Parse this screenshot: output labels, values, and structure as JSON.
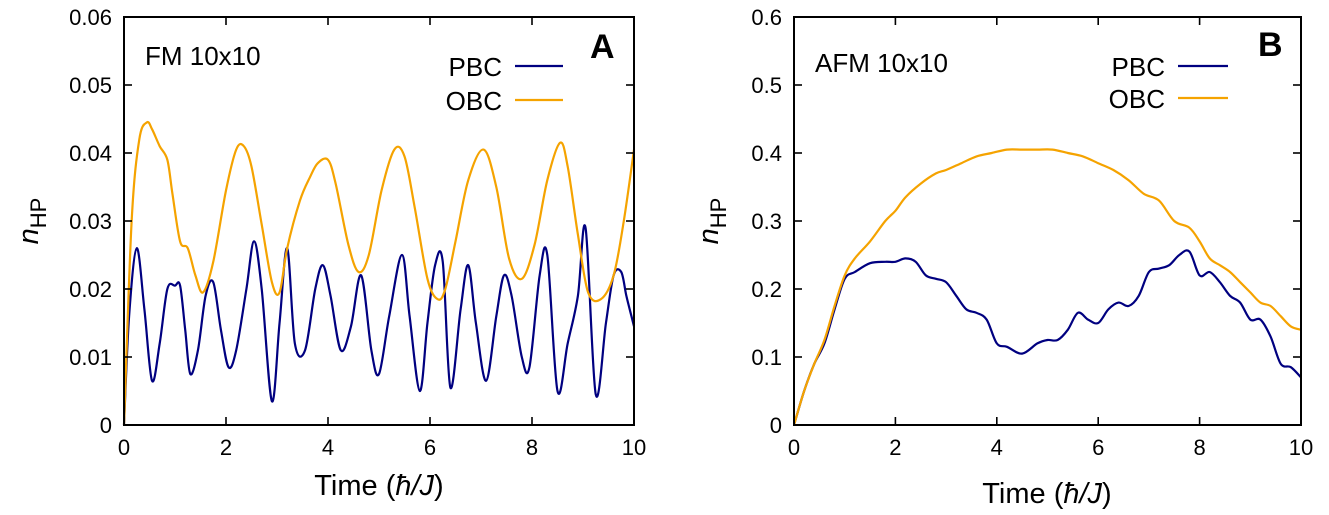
{
  "figure": {
    "panels": [
      {
        "letter": "A",
        "annotation": "FM 10x10",
        "xlabel_main": "Time (",
        "xlabel_unit": "ħ/J",
        "xlabel_close": ")",
        "ylabel_main": "n",
        "ylabel_sub": "HP"
      },
      {
        "letter": "B",
        "annotation": "AFM 10x10",
        "xlabel_main": "Time (",
        "xlabel_unit": "ħ/J",
        "xlabel_close": ")",
        "ylabel_main": "n",
        "ylabel_sub": "HP"
      }
    ]
  },
  "chart_data": [
    {
      "type": "line",
      "title": "FM 10x10",
      "panel": "A",
      "xlabel": "Time (ħ/J)",
      "ylabel": "n_HP",
      "xlim": [
        0,
        10
      ],
      "ylim": [
        0,
        0.06
      ],
      "xticks": [
        0,
        2,
        4,
        6,
        8,
        10
      ],
      "xtick_labels": [
        "0",
        "2",
        "4",
        "6",
        "8",
        "10"
      ],
      "yticks": [
        0,
        0.01,
        0.02,
        0.03,
        0.04,
        0.05,
        0.06
      ],
      "ytick_labels": [
        "0",
        "0.01",
        "0.02",
        "0.03",
        "0.04",
        "0.05",
        "0.06"
      ],
      "legend_position": "top-right",
      "series": [
        {
          "name": "PBC",
          "color": "#000080",
          "x": [
            0,
            0.1,
            0.25,
            0.4,
            0.55,
            0.7,
            0.85,
            1.0,
            1.1,
            1.2,
            1.3,
            1.45,
            1.6,
            1.75,
            1.9,
            2.05,
            2.2,
            2.4,
            2.55,
            2.7,
            2.9,
            3.05,
            3.2,
            3.35,
            3.55,
            3.75,
            3.9,
            4.05,
            4.25,
            4.45,
            4.65,
            4.85,
            5.0,
            5.2,
            5.45,
            5.6,
            5.8,
            5.95,
            6.1,
            6.25,
            6.4,
            6.6,
            6.75,
            6.9,
            7.1,
            7.3,
            7.45,
            7.6,
            7.8,
            7.95,
            8.15,
            8.3,
            8.5,
            8.7,
            8.9,
            9.05,
            9.25,
            9.45,
            9.6,
            9.75,
            9.85,
            9.95,
            10
          ],
          "values": [
            0,
            0.016,
            0.026,
            0.017,
            0.0065,
            0.012,
            0.02,
            0.0205,
            0.0205,
            0.014,
            0.0075,
            0.011,
            0.019,
            0.021,
            0.014,
            0.0085,
            0.011,
            0.02,
            0.027,
            0.02,
            0.0035,
            0.015,
            0.026,
            0.012,
            0.011,
            0.02,
            0.0235,
            0.019,
            0.011,
            0.0145,
            0.022,
            0.011,
            0.0075,
            0.016,
            0.025,
            0.016,
            0.005,
            0.015,
            0.0235,
            0.024,
            0.0055,
            0.017,
            0.0235,
            0.015,
            0.0065,
            0.016,
            0.022,
            0.019,
            0.01,
            0.0085,
            0.022,
            0.025,
            0.005,
            0.012,
            0.019,
            0.029,
            0.0045,
            0.015,
            0.022,
            0.0225,
            0.019,
            0.016,
            0.0145
          ]
        },
        {
          "name": "OBC",
          "color": "#F5A300",
          "x": [
            0,
            0.15,
            0.3,
            0.45,
            0.55,
            0.7,
            0.85,
            0.95,
            1.1,
            1.25,
            1.4,
            1.55,
            1.75,
            2.0,
            2.2,
            2.35,
            2.5,
            2.7,
            2.9,
            3.05,
            3.2,
            3.45,
            3.65,
            3.8,
            4.0,
            4.15,
            4.4,
            4.6,
            4.8,
            5.05,
            5.3,
            5.5,
            5.7,
            5.95,
            6.15,
            6.3,
            6.5,
            6.75,
            7.05,
            7.3,
            7.55,
            7.8,
            8.05,
            8.3,
            8.55,
            8.7,
            8.9,
            9.1,
            9.35,
            9.6,
            9.8,
            10
          ],
          "values": [
            0,
            0.03,
            0.042,
            0.0445,
            0.0435,
            0.041,
            0.039,
            0.034,
            0.027,
            0.026,
            0.022,
            0.0195,
            0.024,
            0.0345,
            0.0405,
            0.041,
            0.038,
            0.0295,
            0.021,
            0.0195,
            0.026,
            0.033,
            0.0365,
            0.0385,
            0.039,
            0.0355,
            0.0265,
            0.0225,
            0.025,
            0.0345,
            0.0405,
            0.0395,
            0.032,
            0.0215,
            0.0185,
            0.02,
            0.027,
            0.036,
            0.0405,
            0.035,
            0.0245,
            0.0215,
            0.0265,
            0.036,
            0.0415,
            0.038,
            0.028,
            0.0195,
            0.0185,
            0.022,
            0.03,
            0.0405
          ]
        }
      ]
    },
    {
      "type": "line",
      "title": "AFM 10x10",
      "panel": "B",
      "xlabel": "Time (ħ/J)",
      "ylabel": "n_HP",
      "xlim": [
        0,
        10
      ],
      "ylim": [
        0,
        0.6
      ],
      "xticks": [
        0,
        2,
        4,
        6,
        8,
        10
      ],
      "xtick_labels": [
        "0",
        "2",
        "4",
        "6",
        "8",
        "10"
      ],
      "yticks": [
        0,
        0.1,
        0.2,
        0.3,
        0.4,
        0.5,
        0.6
      ],
      "ytick_labels": [
        "0",
        "0.1",
        "0.2",
        "0.3",
        "0.4",
        "0.5",
        "0.6"
      ],
      "legend_position": "top-right",
      "series": [
        {
          "name": "PBC",
          "color": "#000080",
          "x": [
            0,
            0.2,
            0.4,
            0.6,
            0.8,
            1.0,
            1.2,
            1.5,
            1.8,
            2.0,
            2.2,
            2.4,
            2.6,
            2.8,
            3.0,
            3.2,
            3.4,
            3.6,
            3.8,
            4.0,
            4.2,
            4.5,
            4.8,
            5.0,
            5.2,
            5.4,
            5.6,
            5.8,
            6.0,
            6.2,
            6.4,
            6.6,
            6.8,
            7.0,
            7.2,
            7.4,
            7.6,
            7.8,
            8.0,
            8.2,
            8.4,
            8.6,
            8.8,
            9.0,
            9.2,
            9.4,
            9.6,
            9.8,
            10
          ],
          "values": [
            0,
            0.05,
            0.09,
            0.12,
            0.17,
            0.215,
            0.225,
            0.238,
            0.24,
            0.24,
            0.245,
            0.24,
            0.22,
            0.215,
            0.21,
            0.19,
            0.17,
            0.165,
            0.155,
            0.12,
            0.115,
            0.105,
            0.12,
            0.125,
            0.125,
            0.14,
            0.165,
            0.155,
            0.15,
            0.17,
            0.18,
            0.175,
            0.19,
            0.225,
            0.23,
            0.235,
            0.25,
            0.255,
            0.22,
            0.225,
            0.21,
            0.19,
            0.18,
            0.155,
            0.155,
            0.13,
            0.09,
            0.085,
            0.07
          ]
        },
        {
          "name": "OBC",
          "color": "#F5A300",
          "x": [
            0,
            0.2,
            0.4,
            0.6,
            0.8,
            1.0,
            1.2,
            1.5,
            1.8,
            2.0,
            2.2,
            2.5,
            2.8,
            3.0,
            3.3,
            3.6,
            3.9,
            4.2,
            4.5,
            4.8,
            5.1,
            5.4,
            5.7,
            6.0,
            6.3,
            6.6,
            6.9,
            7.2,
            7.5,
            7.8,
            8.0,
            8.2,
            8.4,
            8.6,
            8.8,
            9.0,
            9.2,
            9.4,
            9.6,
            9.8,
            10
          ],
          "values": [
            0,
            0.05,
            0.09,
            0.125,
            0.175,
            0.22,
            0.245,
            0.27,
            0.3,
            0.315,
            0.335,
            0.355,
            0.37,
            0.375,
            0.385,
            0.395,
            0.4,
            0.405,
            0.405,
            0.405,
            0.405,
            0.4,
            0.395,
            0.385,
            0.375,
            0.36,
            0.34,
            0.33,
            0.3,
            0.29,
            0.27,
            0.245,
            0.235,
            0.225,
            0.21,
            0.195,
            0.18,
            0.175,
            0.16,
            0.145,
            0.14
          ]
        }
      ]
    }
  ]
}
